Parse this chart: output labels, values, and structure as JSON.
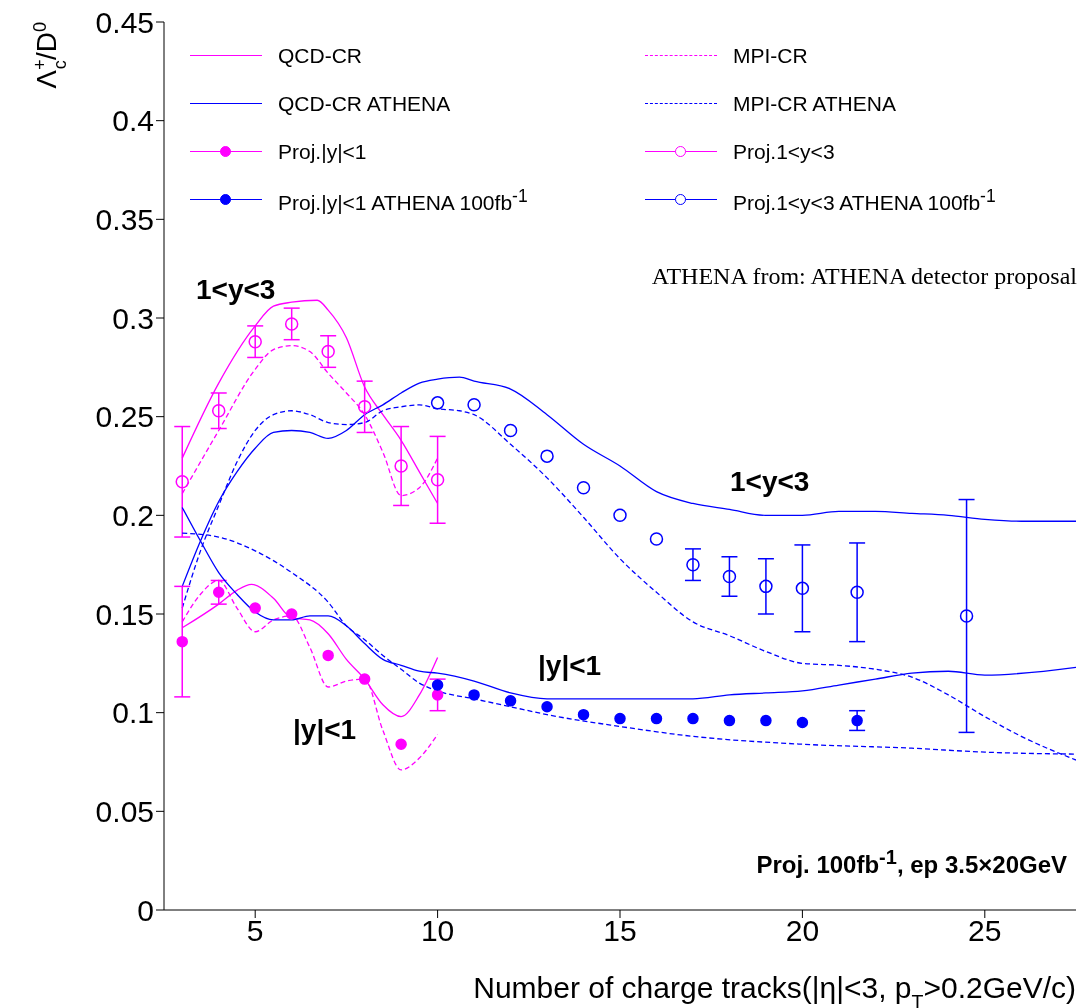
{
  "chart_data": {
    "type": "line",
    "ylabel": "Λ$^{+}$$_{c}$/D$^{0}$",
    "xlabel": "Number of charge tracks(|η|<3, p$_{T}$>0.2GeV/c)",
    "xlim": [
      2.5,
      27.5
    ],
    "xticks": [
      5,
      10,
      15,
      20,
      25
    ],
    "ylim": [
      0,
      0.45
    ],
    "yticks": [
      0,
      0.05,
      0.1,
      0.15,
      0.2,
      0.25,
      0.3,
      0.35,
      0.4,
      0.45
    ],
    "legend": "top",
    "marker": "none",
    "series": [
      {
        "name": "QCD-CR",
        "color": "#ff00ff",
        "line_style": "solid",
        "x": [
          3,
          4,
          5,
          5.5,
          6,
          6.7,
          7,
          7.5,
          8,
          8.5,
          9,
          9.5,
          10
        ],
        "values": [
          0.229,
          0.267,
          0.296,
          0.306,
          0.308,
          0.309,
          0.304,
          0.29,
          0.265,
          0.251,
          0.238,
          0.222,
          0.206
        ]
      },
      {
        "name": "MPI-CR",
        "color": "#ff00ff",
        "line_style": "dashed",
        "x": [
          3,
          4,
          5,
          5.5,
          6,
          6.5,
          7,
          7.5,
          8,
          8.5,
          9,
          9.5,
          10
        ],
        "values": [
          0.211,
          0.243,
          0.274,
          0.284,
          0.286,
          0.283,
          0.272,
          0.262,
          0.251,
          0.232,
          0.21,
          0.214,
          0.229
        ]
      },
      {
        "name": "QCD-CR ATHENA",
        "color": "#0000ff",
        "line_style": "solid",
        "x": [
          3,
          3.5,
          4,
          4.5,
          5,
          5.5,
          6,
          6.5,
          7,
          7.5,
          8,
          8.5,
          9,
          9.5,
          10,
          10.6,
          11,
          12,
          13,
          14,
          15,
          16,
          17,
          18,
          19,
          20,
          21,
          22,
          23,
          24,
          25,
          26,
          27.5
        ],
        "values": [
          0.164,
          0.187,
          0.207,
          0.222,
          0.234,
          0.242,
          0.243,
          0.242,
          0.239,
          0.243,
          0.251,
          0.256,
          0.262,
          0.267,
          0.269,
          0.27,
          0.268,
          0.264,
          0.251,
          0.236,
          0.225,
          0.212,
          0.206,
          0.203,
          0.2,
          0.2,
          0.202,
          0.202,
          0.201,
          0.2,
          0.198,
          0.197,
          0.197
        ]
      },
      {
        "name": "MPI-CR ATHENA",
        "color": "#0000ff",
        "line_style": "dashed",
        "x": [
          3,
          3.5,
          4,
          4.5,
          5,
          5.5,
          6,
          6.5,
          7,
          7.5,
          8,
          8.5,
          9,
          9.5,
          10,
          10.6,
          11,
          12,
          13,
          14,
          15,
          16,
          17,
          18,
          19,
          20,
          21,
          22,
          23,
          24,
          25,
          26,
          27.5
        ],
        "values": [
          0.153,
          0.182,
          0.205,
          0.227,
          0.243,
          0.251,
          0.253,
          0.251,
          0.247,
          0.246,
          0.247,
          0.253,
          0.255,
          0.256,
          0.254,
          0.253,
          0.251,
          0.236,
          0.219,
          0.199,
          0.178,
          0.161,
          0.146,
          0.139,
          0.131,
          0.125,
          0.124,
          0.122,
          0.118,
          0.109,
          0.098,
          0.088,
          0.076
        ]
      },
      {
        "name": "Proj.|y|<1",
        "type": "scatter",
        "marker": "circle",
        "color": "#ff00ff",
        "x": [
          3,
          4,
          5,
          6,
          7,
          8,
          9,
          10
        ],
        "values": [
          0.136,
          0.161,
          0.153,
          0.15,
          0.129,
          0.117,
          0.084,
          0.109
        ],
        "errors": [
          0.028,
          0.006,
          null,
          null,
          null,
          null,
          null,
          0.008
        ]
      },
      {
        "name": "Proj.1<y<3",
        "type": "scatter",
        "marker": "circle-open",
        "color": "#ff00ff",
        "x": [
          3,
          4,
          5,
          6,
          7,
          8,
          9,
          10
        ],
        "values": [
          0.217,
          0.253,
          0.288,
          0.297,
          0.283,
          0.255,
          0.225,
          0.218
        ],
        "errors": [
          0.028,
          0.009,
          0.008,
          0.008,
          0.008,
          0.013,
          0.02,
          0.022
        ]
      },
      {
        "name": "Proj.|y|<1 ATHENA 100fb$^{-1}$",
        "type": "scatter",
        "marker": "circle",
        "color": "#0000ff",
        "x": [
          10,
          11,
          12,
          13,
          14,
          15,
          16,
          17,
          18,
          19,
          20,
          21.5
        ],
        "values": [
          0.114,
          0.109,
          0.106,
          0.103,
          0.099,
          0.097,
          0.097,
          0.097,
          0.096,
          0.096,
          0.095,
          0.096
        ],
        "errors": [
          null,
          null,
          null,
          null,
          null,
          null,
          null,
          null,
          null,
          null,
          null,
          0.005
        ]
      },
      {
        "name": "Proj.1<y<3 ATHENA 100fb$^{-1}$",
        "type": "scatter",
        "marker": "circle-open",
        "color": "#0000ff",
        "x": [
          10,
          11,
          12,
          13,
          14,
          15,
          16,
          17,
          18,
          19,
          20,
          21.5,
          24.5
        ],
        "values": [
          0.257,
          0.256,
          0.243,
          0.23,
          0.214,
          0.2,
          0.188,
          0.175,
          0.169,
          0.164,
          0.163,
          0.161,
          0.149
        ],
        "errors": [
          null,
          null,
          null,
          null,
          null,
          null,
          null,
          0.008,
          0.01,
          0.014,
          0.022,
          0.025,
          0.059
        ]
      },
      {
        "color": "#ff00ff",
        "line_style": "solid",
        "x": [
          3,
          4,
          4.5,
          4.9,
          5.5,
          6,
          6.5,
          7,
          7.5,
          8,
          8.5,
          9,
          9.5,
          10
        ],
        "values": [
          0.143,
          0.155,
          0.162,
          0.165,
          0.158,
          0.148,
          0.147,
          0.14,
          0.127,
          0.117,
          0.104,
          0.098,
          0.109,
          0.128
        ]
      },
      {
        "color": "#ff00ff",
        "line_style": "dashed",
        "x": [
          3,
          3.5,
          4,
          4.5,
          5,
          5.5,
          6,
          6.5,
          7,
          7.5,
          8,
          8.5,
          9,
          9.5,
          10
        ],
        "values": [
          0.146,
          0.16,
          0.167,
          0.153,
          0.141,
          0.147,
          0.149,
          0.133,
          0.113,
          0.116,
          0.117,
          0.091,
          0.071,
          0.077,
          0.089
        ]
      },
      {
        "color": "#0000ff",
        "line_style": "solid",
        "x": [
          3,
          3.5,
          4,
          4.5,
          5,
          5.5,
          6,
          6.5,
          7,
          7.5,
          8,
          8.5,
          9,
          9.5,
          10,
          11,
          12,
          13,
          14,
          15,
          16,
          17,
          18,
          19,
          20,
          21,
          22,
          23,
          24,
          25,
          27.5
        ],
        "values": [
          0.204,
          0.187,
          0.171,
          0.16,
          0.151,
          0.147,
          0.147,
          0.149,
          0.149,
          0.144,
          0.135,
          0.127,
          0.124,
          0.121,
          0.12,
          0.116,
          0.11,
          0.107,
          0.107,
          0.107,
          0.107,
          0.107,
          0.109,
          0.11,
          0.111,
          0.114,
          0.117,
          0.12,
          0.121,
          0.119,
          0.123
        ]
      },
      {
        "color": "#0000ff",
        "line_style": "dashed",
        "x": [
          3,
          4,
          5,
          6,
          7,
          7.5,
          8,
          8.5,
          9,
          9.5,
          10,
          11,
          12,
          13,
          15,
          17,
          20,
          23,
          25,
          27.5
        ],
        "values": [
          0.191,
          0.189,
          0.182,
          0.171,
          0.156,
          0.144,
          0.137,
          0.129,
          0.122,
          0.115,
          0.111,
          0.107,
          0.103,
          0.099,
          0.093,
          0.088,
          0.084,
          0.082,
          0.08,
          0.079
        ]
      }
    ],
    "annotations": [
      "1<y<3",
      "1<y<3",
      "|y|<1",
      "|y|<1",
      "ATHENA from: ATHENA detector proposal",
      "Proj. 100fb$^{-1}$, ep 3.5×20GeV"
    ]
  }
}
